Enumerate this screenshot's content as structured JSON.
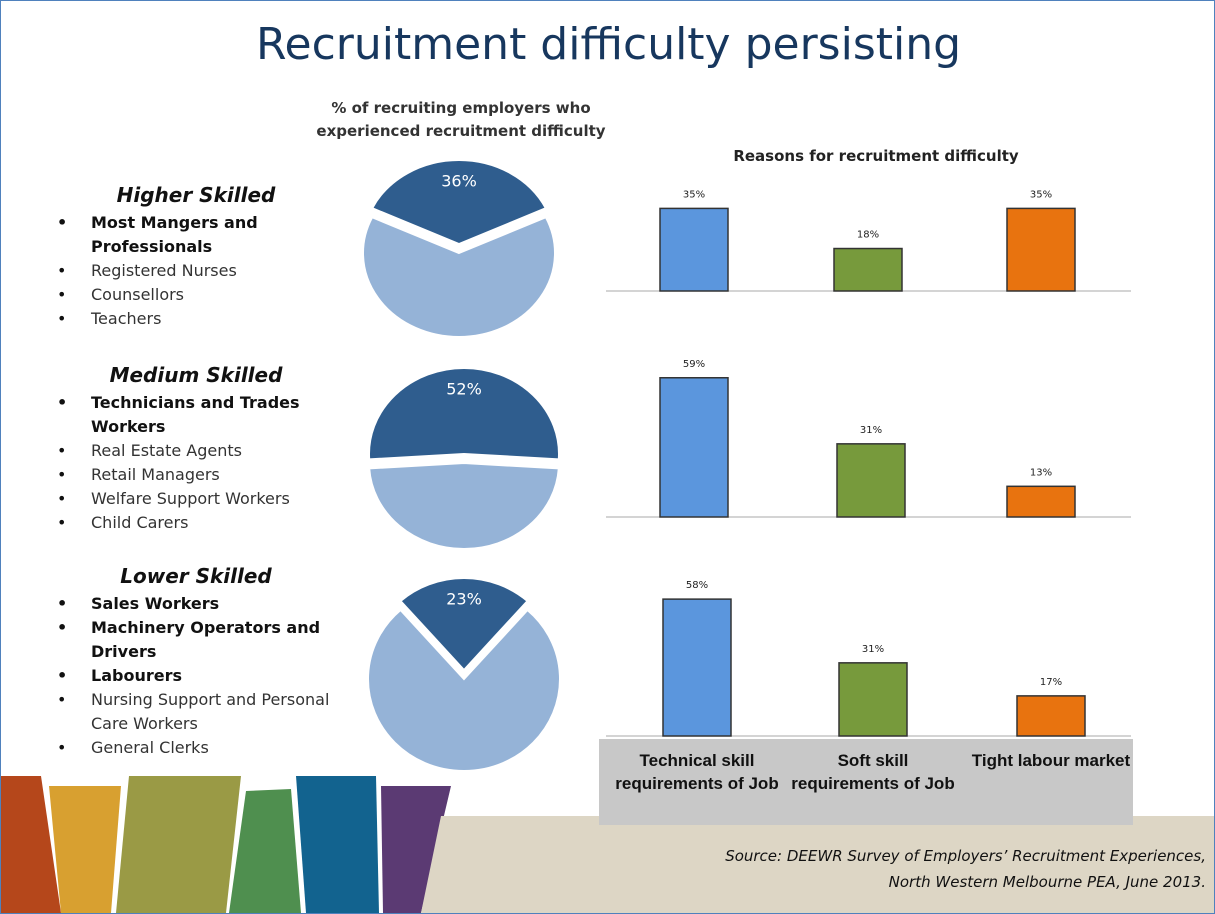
{
  "title": "Recruitment difficulty persisting",
  "groups": [
    {
      "heading": "Higher Skilled",
      "items": [
        {
          "text": "Most Mangers and Professionals",
          "bold": true
        },
        {
          "text": "Registered Nurses",
          "bold": false
        },
        {
          "text": "Counsellors",
          "bold": false
        },
        {
          "text": "Teachers",
          "bold": false
        }
      ]
    },
    {
      "heading": "Medium Skilled",
      "items": [
        {
          "text": "Technicians and Trades Workers",
          "bold": true
        },
        {
          "text": "Real Estate Agents",
          "bold": false
        },
        {
          "text": "Retail Managers",
          "bold": false
        },
        {
          "text": "Welfare Support Workers",
          "bold": false
        },
        {
          "text": "Child Carers",
          "bold": false
        }
      ]
    },
    {
      "heading": "Lower Skilled",
      "items": [
        {
          "text": "Sales Workers",
          "bold": true
        },
        {
          "text": "Machinery Operators and Drivers",
          "bold": true
        },
        {
          "text": "Labourers",
          "bold": true
        },
        {
          "text": "Nursing Support and Personal Care Workers",
          "bold": false
        },
        {
          "text": "General Clerks",
          "bold": false
        }
      ]
    }
  ],
  "chart_data": [
    {
      "type": "pie",
      "title": "% of recruiting employers who experienced recruitment difficulty",
      "values": [
        36,
        64
      ],
      "value_labels": [
        "36%",
        null
      ],
      "colors": [
        "#2f5d8e",
        "#95b3d7"
      ]
    },
    {
      "type": "pie",
      "values": [
        52,
        48
      ],
      "value_labels": [
        "52%",
        null
      ],
      "colors": [
        "#2f5d8e",
        "#95b3d7"
      ]
    },
    {
      "type": "pie",
      "values": [
        23,
        77
      ],
      "value_labels": [
        "23%",
        null
      ],
      "colors": [
        "#2f5d8e",
        "#95b3d7"
      ]
    },
    {
      "type": "bar",
      "title": "Reasons for recruitment difficulty",
      "values": [
        35,
        18,
        35
      ],
      "value_labels": [
        "35%",
        "18%",
        "35%"
      ],
      "colors": [
        "#5b96dd",
        "#779a3c",
        "#e8730f"
      ]
    },
    {
      "type": "bar",
      "values": [
        59,
        31,
        13
      ],
      "value_labels": [
        "59%",
        "31%",
        "13%"
      ],
      "colors": [
        "#5b96dd",
        "#779a3c",
        "#e8730f"
      ]
    },
    {
      "type": "bar",
      "categories": [
        "Technical skill requirements of Job",
        "Soft skill requirements of Job",
        "Tight labour market"
      ],
      "values": [
        58,
        31,
        17
      ],
      "value_labels": [
        "58%",
        "31%",
        "17%"
      ],
      "colors": [
        "#5b96dd",
        "#779a3c",
        "#e8730f"
      ]
    }
  ],
  "source": [
    "Source: DEEWR Survey of Employers’ Recruitment Experiences,",
    "North Western Melbourne PEA, June 2013."
  ]
}
